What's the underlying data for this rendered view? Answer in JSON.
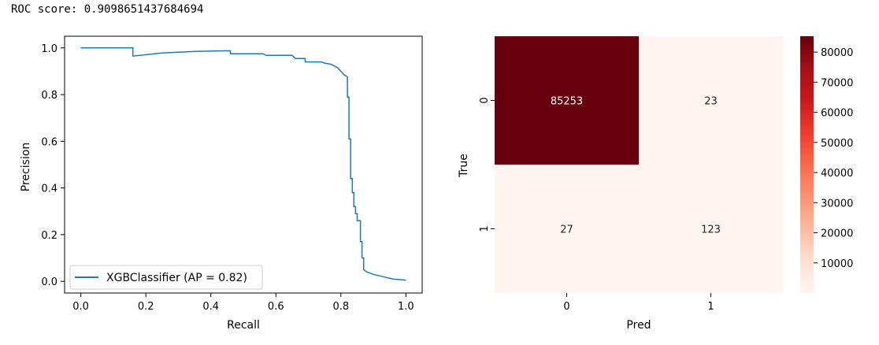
{
  "output_text": "ROC score: 0.9098651437684694",
  "chart_data": [
    {
      "type": "line",
      "title": "",
      "xlabel": "Recall",
      "ylabel": "Precision",
      "xlim": [
        -0.05,
        1.05
      ],
      "ylim": [
        -0.05,
        1.05
      ],
      "xticks": [
        "0.0",
        "0.2",
        "0.4",
        "0.6",
        "0.8",
        "1.0"
      ],
      "yticks": [
        "0.0",
        "0.2",
        "0.4",
        "0.6",
        "0.8",
        "1.0"
      ],
      "grid": false,
      "legend_position": "lower-left",
      "series": [
        {
          "name": "XGBClassifier (AP = 0.82)",
          "color": "#1f77b4",
          "x": [
            0.0,
            0.16,
            0.16,
            0.25,
            0.35,
            0.46,
            0.46,
            0.56,
            0.57,
            0.65,
            0.66,
            0.69,
            0.69,
            0.74,
            0.75,
            0.77,
            0.79,
            0.8,
            0.81,
            0.82,
            0.82,
            0.825,
            0.825,
            0.83,
            0.83,
            0.835,
            0.835,
            0.84,
            0.84,
            0.845,
            0.845,
            0.85,
            0.85,
            0.86,
            0.86,
            0.865,
            0.865,
            0.87,
            0.87,
            0.88,
            0.9,
            0.93,
            0.96,
            1.0
          ],
          "y": [
            1.0,
            1.0,
            0.965,
            0.978,
            0.985,
            0.988,
            0.975,
            0.975,
            0.968,
            0.968,
            0.955,
            0.955,
            0.94,
            0.94,
            0.935,
            0.93,
            0.915,
            0.9,
            0.885,
            0.875,
            0.79,
            0.79,
            0.61,
            0.61,
            0.44,
            0.44,
            0.38,
            0.38,
            0.32,
            0.32,
            0.29,
            0.29,
            0.26,
            0.26,
            0.17,
            0.17,
            0.1,
            0.1,
            0.05,
            0.04,
            0.03,
            0.02,
            0.01,
            0.005
          ]
        }
      ]
    },
    {
      "type": "heatmap",
      "title": "",
      "xlabel": "Pred",
      "ylabel": "True",
      "x_categories": [
        "0",
        "1"
      ],
      "y_categories": [
        "0",
        "1"
      ],
      "values": [
        [
          85253,
          23
        ],
        [
          27,
          123
        ]
      ],
      "annotations": [
        [
          "85253",
          "23"
        ],
        [
          "27",
          "123"
        ]
      ],
      "colormap": "Reds",
      "colorbar": {
        "min": 0,
        "max": 85253,
        "ticks": [
          10000,
          20000,
          30000,
          40000,
          50000,
          60000,
          70000,
          80000
        ],
        "tick_labels": [
          "10000",
          "20000",
          "30000",
          "40000",
          "50000",
          "60000",
          "70000",
          "80000"
        ]
      }
    }
  ]
}
